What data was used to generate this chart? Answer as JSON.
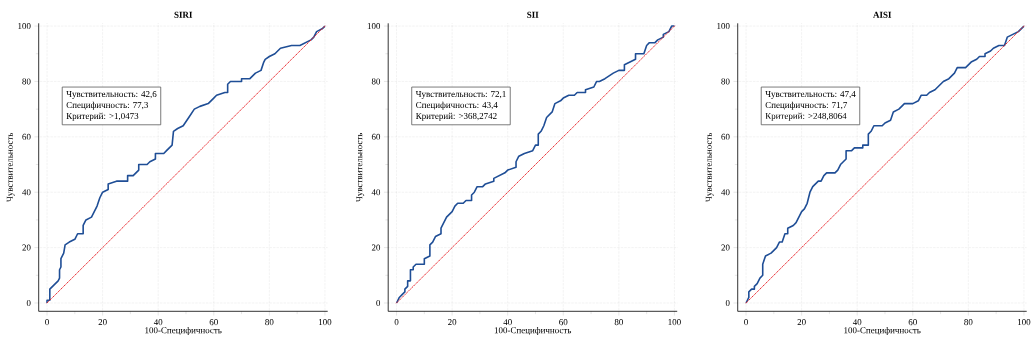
{
  "chart_data": [
    {
      "type": "line",
      "title": "SIRI",
      "xlabel": "100-Специфичность",
      "ylabel": "Чувствительность",
      "xlim": [
        -3,
        101
      ],
      "ylim": [
        -3,
        101
      ],
      "xticks": [
        0,
        20,
        40,
        60,
        80,
        100
      ],
      "yticks": [
        0,
        20,
        40,
        60,
        80,
        100
      ],
      "grid": true,
      "annotations": [
        "Чувствительность: 42,6",
        "Специфичность: 77,3",
        "Критерий: >1,0473"
      ],
      "series": [
        {
          "color": "#1f4e96",
          "line_style": "solid",
          "x": [
            0,
            0,
            1,
            1,
            2,
            3,
            4,
            4.5,
            4.5,
            5,
            5,
            6,
            6.5,
            8,
            10,
            11,
            13,
            13,
            14,
            16,
            17,
            18,
            19,
            20,
            22,
            22,
            25,
            29,
            29,
            31,
            33,
            33,
            36,
            37,
            39,
            39,
            42,
            43,
            45,
            45.5,
            47,
            49,
            51,
            53,
            55,
            58,
            60,
            61,
            64,
            65,
            65,
            66,
            70,
            70,
            73,
            75,
            77,
            78,
            78.5,
            80,
            82,
            84,
            88,
            91,
            93,
            95,
            96,
            97,
            99,
            100
          ],
          "values": [
            0,
            1,
            1,
            5,
            6,
            7,
            8,
            9,
            12,
            13,
            16,
            18,
            21,
            22,
            23,
            25,
            25,
            28,
            30,
            31,
            33,
            35,
            38,
            40,
            41,
            43,
            44,
            44,
            46,
            46,
            48,
            50,
            50,
            51,
            52,
            54,
            54,
            55,
            57,
            62,
            63,
            64,
            67,
            70,
            71,
            72,
            74,
            75,
            76,
            76,
            79,
            80,
            80,
            81,
            81,
            83,
            84,
            87,
            88,
            89,
            90,
            92,
            93,
            93,
            94,
            95,
            96,
            98,
            99,
            100
          ]
        },
        {
          "type": "line",
          "color": "#e8262c",
          "line_style": "dotted",
          "x": [
            0,
            100
          ],
          "values": [
            0,
            100
          ]
        }
      ]
    },
    {
      "type": "line",
      "title": "SII",
      "xlabel": "100-Специфичность",
      "ylabel": "Чувствительность",
      "xlim": [
        -3,
        101
      ],
      "ylim": [
        -3,
        101
      ],
      "xticks": [
        0,
        20,
        40,
        60,
        80,
        100
      ],
      "yticks": [
        0,
        20,
        40,
        60,
        80,
        100
      ],
      "grid": true,
      "annotations": [
        "Чувствительность: 72,1",
        "Специфичность: 43,4",
        "Критерий: >368,2742"
      ],
      "series": [
        {
          "color": "#1f4e96",
          "line_style": "solid",
          "x": [
            0,
            1,
            2,
            3,
            3,
            4,
            4,
            5,
            5,
            6,
            6,
            7,
            10,
            10,
            12,
            12,
            13,
            14,
            16,
            16,
            17,
            18,
            20,
            21,
            22,
            24,
            25,
            27,
            27,
            28,
            29,
            31,
            32,
            35,
            35,
            37,
            39,
            40,
            43,
            43,
            44,
            46,
            49,
            50,
            51,
            51,
            52,
            53,
            54,
            56,
            57,
            59,
            60,
            62,
            64,
            65,
            68,
            68,
            71,
            72,
            73,
            75,
            78,
            80,
            82,
            82,
            84,
            86,
            86,
            89,
            90,
            91,
            93,
            94,
            96,
            96,
            98,
            99,
            100
          ],
          "values": [
            0,
            2,
            3,
            4,
            5,
            6,
            8,
            8,
            12,
            12,
            13,
            14,
            14,
            16,
            17,
            21,
            22,
            24,
            25,
            27,
            29,
            31,
            33,
            35,
            36,
            36,
            37,
            37,
            39,
            40,
            42,
            42,
            43,
            44,
            45,
            46,
            47,
            48,
            49,
            51,
            53,
            54,
            55,
            57,
            57,
            61,
            62,
            64,
            67,
            69,
            72,
            73,
            74,
            75,
            75,
            76,
            76,
            77,
            78,
            80,
            80,
            81,
            83,
            84,
            84,
            86,
            87,
            88,
            90,
            90,
            93,
            94,
            94,
            95,
            96,
            97,
            98,
            100,
            100
          ]
        },
        {
          "type": "line",
          "color": "#e8262c",
          "line_style": "dotted",
          "x": [
            0,
            100
          ],
          "values": [
            0,
            100
          ]
        }
      ]
    },
    {
      "type": "line",
      "title": "AISI",
      "xlabel": "100-Специфичность",
      "ylabel": "Чувствительность",
      "xlim": [
        -3,
        101
      ],
      "ylim": [
        -3,
        101
      ],
      "xticks": [
        0,
        20,
        40,
        60,
        80,
        100
      ],
      "yticks": [
        0,
        20,
        40,
        60,
        80,
        100
      ],
      "grid": true,
      "annotations": [
        "Чувствительность: 47,4",
        "Специфичность: 71,7",
        "Критерий: >248,8064"
      ],
      "series": [
        {
          "color": "#1f4e96",
          "line_style": "solid",
          "x": [
            0,
            1,
            1,
            2,
            3,
            3,
            4,
            5,
            6,
            6,
            7,
            9,
            10,
            11,
            12,
            13,
            14,
            15,
            15,
            17,
            18,
            19,
            20,
            21,
            22,
            22.5,
            23,
            24,
            25,
            26,
            27,
            28,
            29,
            32,
            33,
            34,
            35,
            36,
            36,
            38,
            39,
            42,
            42,
            44,
            44,
            45,
            46,
            49,
            50,
            52,
            53,
            55,
            56,
            57,
            60,
            62,
            63,
            65,
            66,
            68,
            70,
            71,
            73,
            75,
            76,
            79,
            81,
            83,
            84,
            86,
            86,
            88,
            89,
            91,
            93,
            94,
            96,
            98,
            100
          ],
          "values": [
            0,
            2,
            4,
            5,
            5,
            6,
            7,
            9,
            10,
            14,
            17,
            18,
            19,
            20,
            22,
            22,
            25,
            25,
            27,
            28,
            29,
            31,
            33,
            34,
            36,
            38,
            40,
            42,
            43,
            44,
            44,
            46,
            47,
            47,
            48,
            50,
            51,
            52,
            55,
            55,
            56,
            56,
            57,
            57,
            61,
            62,
            64,
            64,
            65,
            66,
            69,
            70,
            71,
            72,
            72,
            73,
            75,
            75,
            76,
            77,
            79,
            80,
            81,
            83,
            85,
            85,
            87,
            88,
            89,
            89,
            90,
            91,
            92,
            93,
            93,
            96,
            97,
            98,
            100
          ]
        },
        {
          "type": "line",
          "color": "#e8262c",
          "line_style": "dotted",
          "x": [
            0,
            100
          ],
          "values": [
            0,
            100
          ]
        }
      ]
    }
  ]
}
